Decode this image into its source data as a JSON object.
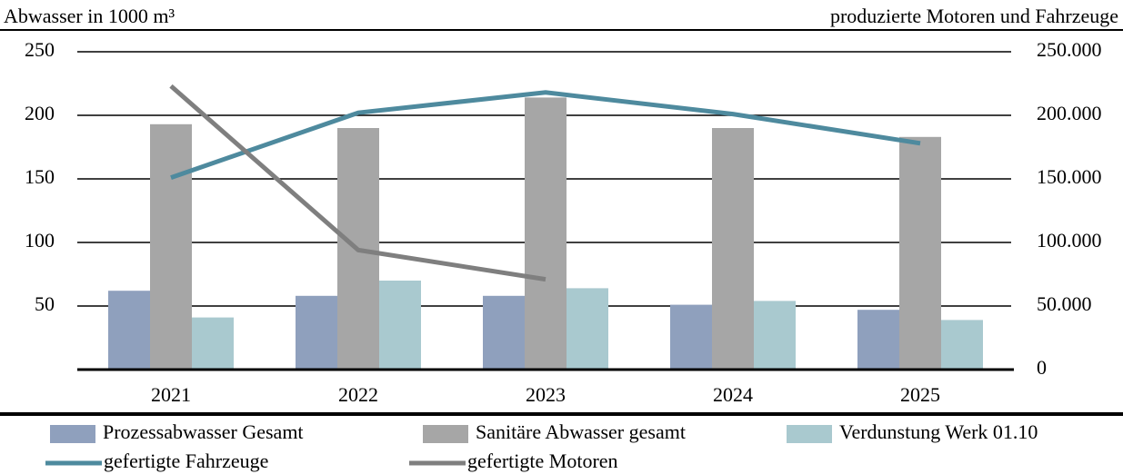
{
  "chart_data": {
    "type": "bar",
    "y_label": "Abwasser in 1000 m³",
    "y2_label": "produzierte Motoren und Fahrzeuge",
    "categories": [
      "2021",
      "2022",
      "2023",
      "2024",
      "2025"
    ],
    "series": [
      {
        "name": "Prozessabwasser Gesamt",
        "type": "bar",
        "color": "#8fa0bd",
        "values": [
          62,
          58,
          58,
          51,
          47
        ]
      },
      {
        "name": "Sanitäre Abwasser gesamt",
        "type": "bar",
        "color": "#a6a6a6",
        "values": [
          193,
          190,
          214,
          190,
          183
        ]
      },
      {
        "name": "Verdunstung Werk 01.10",
        "type": "bar",
        "color": "#a9c9cf",
        "values": [
          41,
          70,
          64,
          54,
          39
        ]
      },
      {
        "name": "gefertigte Fahrzeuge",
        "type": "line",
        "axis": "y2",
        "color": "#4e8a9e",
        "values": [
          151000,
          202000,
          218000,
          201000,
          178000
        ]
      },
      {
        "name": "gefertigte Motoren",
        "type": "line",
        "axis": "y2",
        "color": "#7f7f7f",
        "values": [
          223000,
          94000,
          71000,
          null,
          null
        ]
      }
    ],
    "ylim": [
      0,
      250
    ],
    "yticks": [
      50,
      100,
      150,
      200,
      250
    ],
    "y2lim": [
      0,
      250000
    ],
    "y2ticks": [
      0,
      {
        "value": 50000,
        "label": "50.000"
      },
      {
        "value": 100000,
        "label": "100.000"
      },
      {
        "value": 150000,
        "label": "150.000"
      },
      {
        "value": 200000,
        "label": "200.000"
      },
      {
        "value": 250000,
        "label": "250.000"
      }
    ],
    "grid": true
  }
}
